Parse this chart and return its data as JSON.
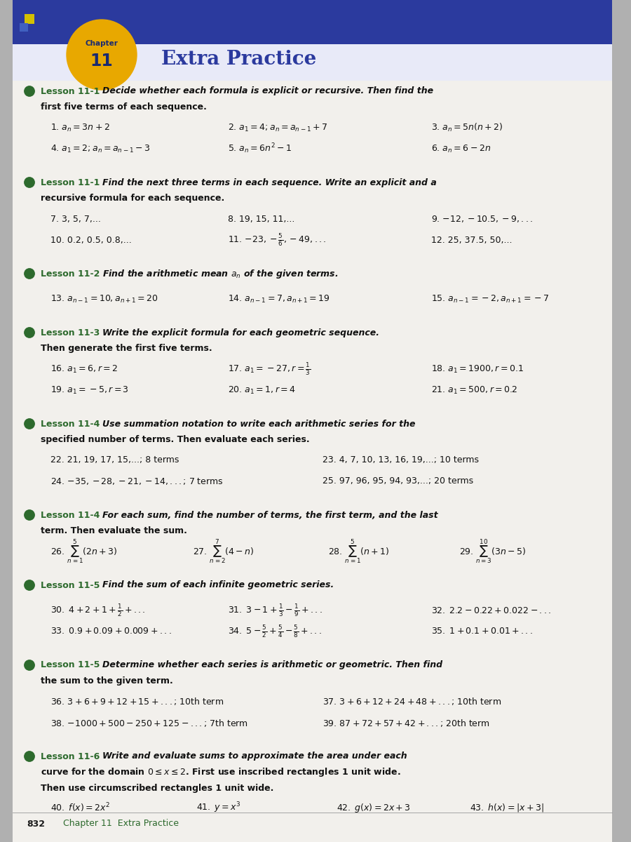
{
  "bg_color": "#b0b0b0",
  "page_bg": "#f2f0ec",
  "header_dark_bg": "#2b3a9e",
  "header_light_bg": "#d8ddf5",
  "chapter_label": "Chapter",
  "chapter_num": "11",
  "chapter_title": "Extra Practice",
  "footer_text": "832",
  "footer_text2": "Chapter 11  Extra Practice",
  "dot_color": "#2d6a2d",
  "lesson_color": "#2d6a2d",
  "text_color": "#111111",
  "title_color": "#2b3a9e",
  "circle_color": "#e8a800",
  "s1_label": "Lesson 11-1",
  "s1_bold": "Decide whether each formula is explicit or recursive. Then find the",
  "s1_text2": "first five terms of each sequence.",
  "s1_r1": [
    "1. $a_n = 3n + 2$",
    "2. $a_1 = 4; a_n = a_{n-1} + 7$",
    "3. $a_n = 5n(n + 2)$"
  ],
  "s1_r2": [
    "4. $a_1 = 2; a_n = a_{n-1} - 3$",
    "5. $a_n = 6n^2 - 1$",
    "6. $a_n = 6 - 2n$"
  ],
  "s2_label": "Lesson 11-1",
  "s2_bold": "Find the next three terms in each sequence. Write an explicit and a",
  "s2_text2": "recursive formula for each sequence.",
  "s2_r1": [
    "7. 3, 5, 7,...",
    "8. 19, 15, 11,...",
    "9. $-12, -10.5, -9,...$"
  ],
  "s2_r2": [
    "10. 0.2, 0.5, 0.8,...",
    "11. $-23, -\\frac{5}{6}, -49,...$",
    "12. 25, 37.5, 50,..."
  ],
  "s3_label": "Lesson 11-2",
  "s3_bold": "Find the arithmetic mean $a_n$ of the given terms.",
  "s3_r1": [
    "13. $a_{n-1} = 10, a_{n+1} = 20$",
    "14. $a_{n-1} = 7, a_{n+1} = 19$",
    "15. $a_{n-1} = -2, a_{n+1} = -7$"
  ],
  "s4_label": "Lesson 11-3",
  "s4_bold": "Write the explicit formula for each geometric sequence.",
  "s4_text2": "Then generate the first five terms.",
  "s4_r1": [
    "16. $a_1 = 6, r = 2$",
    "17. $a_1 = -27, r = \\frac{1}{3}$",
    "18. $a_1 = 1900, r = 0.1$"
  ],
  "s4_r2": [
    "19. $a_1 = -5, r = 3$",
    "20. $a_1 = 1, r = 4$",
    "21. $a_1 = 500, r = 0.2$"
  ],
  "s5_label": "Lesson 11-4",
  "s5_bold": "Use summation notation to write each arithmetic series for the",
  "s5_text2": "specified number of terms. Then evaluate each series.",
  "s5_r1": [
    "22. 21, 19, 17, 15,...; 8 terms",
    "23. 4, 7, 10, 13, 16, 19,...; 10 terms"
  ],
  "s5_r2": [
    "24. $-35, -28, -21, -14,...$; 7 terms",
    "25. 97, 96, 95, 94, 93,...; 20 terms"
  ],
  "s6_label": "Lesson 11-4",
  "s6_bold": "For each sum, find the number of terms, the first term, and the last",
  "s6_text2": "term. Then evaluate the sum.",
  "s6_nums": [
    "26.",
    "27.",
    "28.",
    "29."
  ],
  "s6_sigs": [
    "$\\sum_{n=1}^{5}(2n + 3)$",
    "$\\sum_{n=2}^{7}(4 - n)$",
    "$\\sum_{n=1}^{5}(n + 1)$",
    "$\\sum_{n=3}^{10}(3n - 5)$"
  ],
  "s7_label": "Lesson 11-5",
  "s7_bold": "Find the sum of each infinite geometric series.",
  "s7_r1": [
    "$30.\\; 4 + 2 + 1 + \\frac{1}{2} + ...$",
    "$31.\\; 3 - 1 + \\frac{1}{3} - \\frac{1}{9} + ...$",
    "$32.\\; 2.2 - 0.22 + 0.022 - ...$"
  ],
  "s7_r2": [
    "$33.\\; 0.9 + 0.09 + 0.009 + ...$",
    "$34.\\; 5 - \\frac{5}{2} + \\frac{5}{4} - \\frac{5}{8} + ...$",
    "$35.\\; 1 + 0.1 + 0.01 + ...$"
  ],
  "s8_label": "Lesson 11-5",
  "s8_bold": "Determine whether each series is arithmetic or geometric. Then find",
  "s8_text2": "the sum to the given term.",
  "s8_r1": [
    "36. $3 + 6 + 9 + 12 + 15 + ...$; 10th term",
    "37. $3 + 6 + 12 + 24 + 48 + ...$; 10th term"
  ],
  "s8_r2": [
    "38. $-1000 + 500 - 250 + 125 - ...$; 7th term",
    "39. $87 + 72 + 57 + 42 + ...$; 20th term"
  ],
  "s9_label": "Lesson 11-6",
  "s9_bold": "Write and evaluate sums to approximate the area under each",
  "s9_text2": "curve for the domain $0 \\leq x \\leq 2$. First use inscribed rectangles 1 unit wide.",
  "s9_text3": "Then use circumscribed rectangles 1 unit wide.",
  "s9_r1": [
    "$40.\\; f(x) = 2x^2$",
    "$41.\\; y = x^3$",
    "$42.\\; g(x) = 2x + 3$",
    "$43.\\; h(x) = |x + 3|$"
  ]
}
